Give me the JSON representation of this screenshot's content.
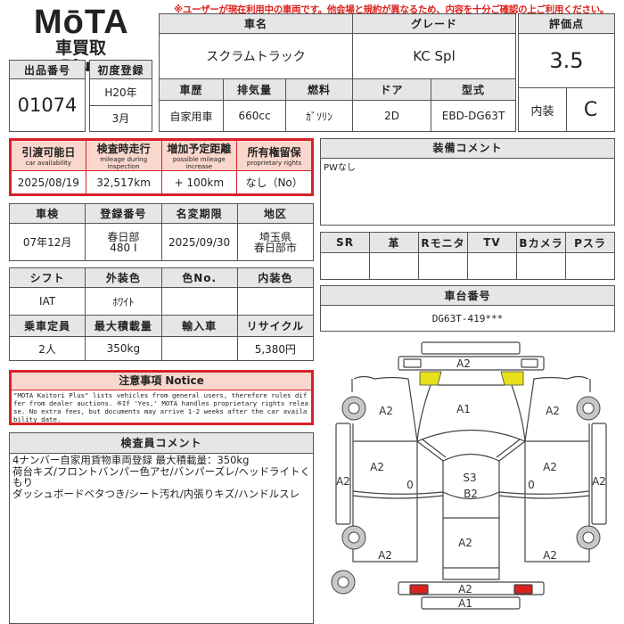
{
  "warning": "※ユーザーが現在利用中の車両です。他会場と規約が異なるため、内容を十分ご確認の上ご利用ください。",
  "logo": {
    "brand": "MōTA",
    "sub": "車買取 Plus"
  },
  "listing": {
    "label": "出品番号",
    "value": "01074"
  },
  "first_reg": {
    "label": "初度登録",
    "year": "H20年",
    "month": "3月"
  },
  "vehicle": {
    "name_label": "車名",
    "name": "スクラムトラック",
    "grade_label": "グレード",
    "grade": "KC Spl",
    "headers": [
      "車歴",
      "排気量",
      "燃料",
      "ドア",
      "型式"
    ],
    "values": [
      "自家用車",
      "660cc",
      "ｶﾞｿﾘﾝ",
      "2D",
      "EBD-DG63T"
    ]
  },
  "score": {
    "label": "評価点",
    "value": "3.5",
    "interior_label": "内装",
    "interior": "C"
  },
  "availability": {
    "headers": [
      {
        "jp": "引渡可能日",
        "en": "car availability"
      },
      {
        "jp": "検査時走行",
        "en": "mileage during inspection"
      },
      {
        "jp": "増加予定距離",
        "en": "possible mileage increase"
      },
      {
        "jp": "所有権留保",
        "en": "proprietary rights"
      }
    ],
    "values": [
      "2025/08/19",
      "32,517km",
      "+ 100km",
      "なし（No）"
    ]
  },
  "registration": {
    "headers": [
      "車検",
      "登録番号",
      "名変期限",
      "地区"
    ],
    "values": [
      "07年12月",
      "春日部\n480 I",
      "2025/09/30",
      "埼玉県\n春日部市"
    ]
  },
  "specs": {
    "headers1": [
      "シフト",
      "外装色",
      "色No.",
      "内装色"
    ],
    "values1": [
      "IAT",
      "ﾎﾜｲﾄ",
      "",
      ""
    ],
    "headers2": [
      "乗車定員",
      "最大積載量",
      "輸入車",
      "リサイクル"
    ],
    "values2": [
      "2人",
      "350kg",
      "",
      "5,380円"
    ]
  },
  "notice": {
    "title": "注意事項 Notice",
    "text": "\"MOTA Kaitori Plus\" lists vehicles from general users, therefore rules differ from dealer auctions. ※If 'Yes,' MOTA handles proprietary rights release. No extra fees, but documents may arrive 1-2 weeks after the car availability date."
  },
  "inspector": {
    "title": "検査員コメント",
    "lines": [
      "4ナンバー自家用貨物車両登録 最大積載量：350kg",
      "荷台キズ/フロントバンパー色アセ/バンパーズレ/ヘッドライトくもり",
      "ダッシュボードベタつき/シート汚れ/内張りキズ/ハンドルスレ"
    ]
  },
  "equipment": {
    "title": "装備コメント",
    "text": "PWなし",
    "options": [
      "SR",
      "革",
      "Rモニタ",
      "TV",
      "Bカメラ",
      "Pスラ"
    ],
    "option_values": [
      "",
      "",
      "",
      "",
      "",
      ""
    ]
  },
  "chassis": {
    "title": "車台番号",
    "value": "DG63T-419***"
  },
  "diagram": {
    "front_top": "A2",
    "hood": "A1",
    "left_front_fender": "A2",
    "right_front_fender": "A2",
    "left_door": "A2",
    "right_door": "A2",
    "left_sill": "A2",
    "right_sill": "A2",
    "left_mark": "0",
    "right_mark": "0",
    "roof_1": "S3",
    "roof_2": "B2",
    "bed": "A2",
    "left_rear": "A2",
    "right_rear": "A2",
    "rear_bumper": "A2",
    "rear_bottom": "A1",
    "colors": {
      "headlight": "#e8e01a",
      "taillight": "#dd2020",
      "wheel": "#c8c8c8"
    }
  }
}
